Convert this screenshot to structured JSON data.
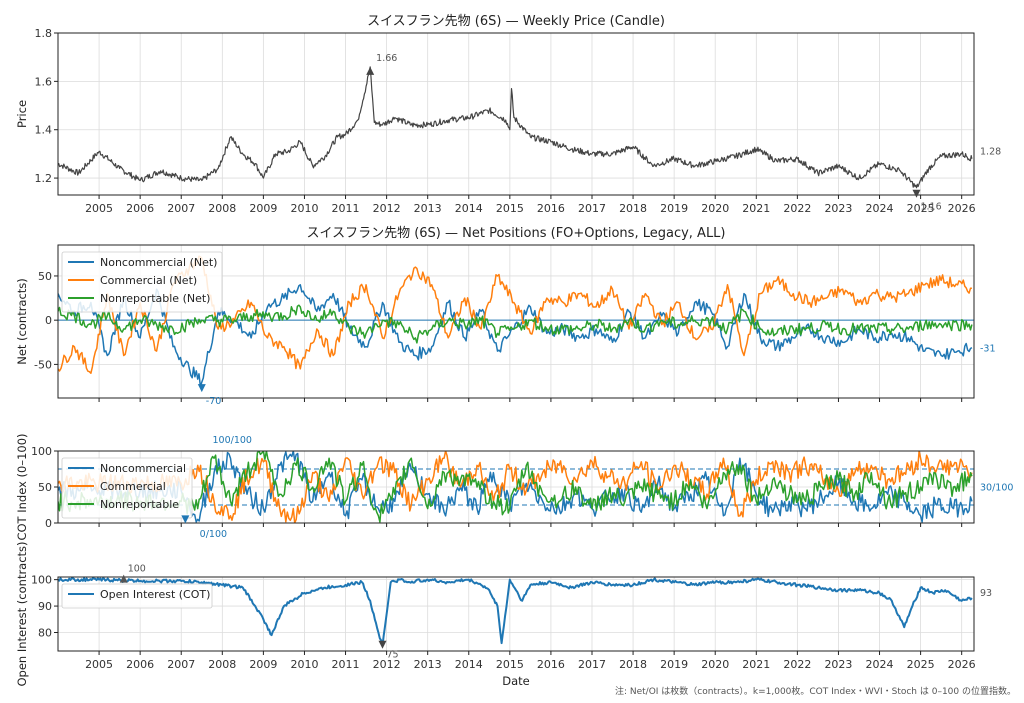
{
  "colors": {
    "price": "#444444",
    "noncommercial": "#1f77b4",
    "commercial": "#ff7f0e",
    "nonreportable": "#2ca02c",
    "oi": "#1f77b4"
  },
  "xaxis": {
    "xlabel": "Date",
    "range": [
      2004.0,
      2026.3
    ],
    "ticks": [
      "2005",
      "2006",
      "2007",
      "2008",
      "2009",
      "2010",
      "2011",
      "2012",
      "2013",
      "2014",
      "2015",
      "2016",
      "2017",
      "2018",
      "2019",
      "2020",
      "2021",
      "2022",
      "2023",
      "2024",
      "2025",
      "2026"
    ]
  },
  "footnote": "注: Net/OI は枚数（contracts）。k=1,000枚。COT Index・WVI・Stoch は 0–100 の位置指数。",
  "chart_data": [
    {
      "type": "line",
      "title": "スイスフラン先物 (6S) — Weekly Price (Candle)",
      "ylabel": "Price",
      "ylim": [
        1.13,
        1.8
      ],
      "yticks": [
        "1.2",
        "1.4",
        "1.6",
        "1.8"
      ],
      "annotations": {
        "max_label": "1.66",
        "min_label": "1.16",
        "last_label": "1.28"
      },
      "x": [
        2004.0,
        2004.5,
        2005.0,
        2005.5,
        2006.0,
        2006.5,
        2007.0,
        2007.5,
        2007.9,
        2008.2,
        2008.5,
        2008.8,
        2009.0,
        2009.3,
        2009.6,
        2009.9,
        2010.2,
        2010.5,
        2010.8,
        2011.0,
        2011.3,
        2011.5,
        2011.6,
        2011.7,
        2011.9,
        2012.2,
        2012.6,
        2013.0,
        2013.5,
        2014.0,
        2014.5,
        2014.9,
        2015.0,
        2015.04,
        2015.1,
        2015.5,
        2016.0,
        2016.5,
        2017.0,
        2017.5,
        2018.0,
        2018.5,
        2019.0,
        2019.5,
        2020.0,
        2020.5,
        2021.0,
        2021.5,
        2022.0,
        2022.5,
        2023.0,
        2023.5,
        2024.0,
        2024.5,
        2024.9,
        2025.2,
        2025.5,
        2026.0,
        2026.25
      ],
      "series": [
        {
          "values": [
            1.26,
            1.22,
            1.31,
            1.24,
            1.19,
            1.23,
            1.2,
            1.19,
            1.24,
            1.37,
            1.3,
            1.26,
            1.2,
            1.3,
            1.31,
            1.35,
            1.25,
            1.29,
            1.37,
            1.38,
            1.44,
            1.58,
            1.66,
            1.43,
            1.42,
            1.45,
            1.42,
            1.42,
            1.44,
            1.45,
            1.48,
            1.44,
            1.4,
            1.57,
            1.45,
            1.37,
            1.35,
            1.32,
            1.3,
            1.3,
            1.33,
            1.25,
            1.28,
            1.25,
            1.27,
            1.29,
            1.32,
            1.27,
            1.28,
            1.22,
            1.25,
            1.2,
            1.26,
            1.23,
            1.16,
            1.24,
            1.29,
            1.3,
            1.28
          ]
        }
      ]
    },
    {
      "type": "line",
      "title": "スイスフラン先物 (6S) — Net Positions (FO+Options, Legacy, ALL)",
      "ylabel": "Net (contracts)",
      "ylim": [
        -88,
        85
      ],
      "yticks": [
        "50",
        "0",
        "-50"
      ],
      "annotations": {
        "min_label": "-70",
        "last_label": "-31"
      },
      "x": [
        2004.0,
        2004.4,
        2004.8,
        2005.2,
        2005.6,
        2006.0,
        2006.4,
        2006.8,
        2007.2,
        2007.5,
        2007.9,
        2008.3,
        2008.7,
        2009.1,
        2009.5,
        2009.9,
        2010.3,
        2010.7,
        2011.1,
        2011.5,
        2011.9,
        2012.3,
        2012.7,
        2013.1,
        2013.5,
        2013.9,
        2014.3,
        2014.7,
        2015.1,
        2015.5,
        2015.9,
        2016.3,
        2016.7,
        2017.1,
        2017.5,
        2017.9,
        2018.3,
        2018.7,
        2019.1,
        2019.5,
        2019.9,
        2020.3,
        2020.7,
        2021.1,
        2021.5,
        2021.9,
        2022.3,
        2022.7,
        2023.1,
        2023.5,
        2023.9,
        2024.3,
        2024.7,
        2025.1,
        2025.5,
        2025.9,
        2026.25
      ],
      "series": [
        {
          "name": "Noncommercial (Net)",
          "values": [
            30,
            10,
            20,
            -40,
            25,
            -20,
            35,
            -30,
            -55,
            -70,
            10,
            0,
            -20,
            15,
            25,
            40,
            10,
            30,
            -10,
            -30,
            20,
            -25,
            -40,
            -30,
            20,
            -20,
            10,
            -35,
            -10,
            15,
            -15,
            -10,
            -20,
            -10,
            -25,
            10,
            -20,
            5,
            -15,
            20,
            10,
            -30,
            30,
            -20,
            -30,
            -20,
            -10,
            -20,
            -25,
            -10,
            -20,
            -15,
            -20,
            -35,
            -40,
            -35,
            -31
          ]
        },
        {
          "name": "Commercial (Net)",
          "values": [
            -55,
            -30,
            -60,
            30,
            -40,
            20,
            -35,
            40,
            60,
            70,
            -10,
            0,
            20,
            -20,
            -30,
            -55,
            -10,
            -40,
            20,
            40,
            -20,
            30,
            60,
            40,
            -20,
            25,
            -10,
            50,
            20,
            -15,
            25,
            20,
            30,
            15,
            35,
            -10,
            30,
            -5,
            20,
            -20,
            -10,
            40,
            -40,
            30,
            45,
            30,
            20,
            25,
            35,
            20,
            30,
            25,
            30,
            40,
            45,
            40,
            36
          ]
        },
        {
          "name": "Nonreportable (Net)",
          "values": [
            10,
            5,
            -5,
            5,
            -10,
            0,
            -5,
            -10,
            -5,
            0,
            0,
            0,
            5,
            5,
            5,
            15,
            0,
            10,
            -10,
            -15,
            0,
            -5,
            -20,
            -10,
            0,
            -5,
            0,
            -15,
            -10,
            0,
            -10,
            -10,
            -10,
            -5,
            -10,
            0,
            -10,
            0,
            -5,
            0,
            0,
            -10,
            10,
            -10,
            -15,
            -10,
            -10,
            -5,
            -10,
            -10,
            -10,
            -10,
            -10,
            -5,
            -5,
            -5,
            -5
          ]
        }
      ]
    },
    {
      "type": "line",
      "ylabel": "COT Index (0–100)",
      "ylim": [
        0,
        100
      ],
      "yticks": [
        "100",
        "50",
        "0"
      ],
      "hlines": [
        75,
        25
      ],
      "annotations": {
        "max_label": "100/100",
        "min_label": "0/100",
        "last_label": "30/100"
      },
      "x": [
        2004.0,
        2004.5,
        2005.0,
        2005.5,
        2006.0,
        2006.5,
        2007.0,
        2007.4,
        2007.8,
        2008.2,
        2008.6,
        2009.0,
        2009.4,
        2009.8,
        2010.2,
        2010.6,
        2011.0,
        2011.4,
        2011.8,
        2012.2,
        2012.6,
        2013.0,
        2013.4,
        2013.8,
        2014.2,
        2014.6,
        2015.0,
        2015.4,
        2015.8,
        2016.2,
        2016.6,
        2017.0,
        2017.4,
        2017.8,
        2018.2,
        2018.6,
        2019.0,
        2019.4,
        2019.8,
        2020.2,
        2020.6,
        2021.0,
        2021.4,
        2021.8,
        2022.2,
        2022.6,
        2023.0,
        2023.4,
        2023.8,
        2024.2,
        2024.6,
        2025.0,
        2025.4,
        2025.8,
        2026.25
      ],
      "series": [
        {
          "name": "Noncommercial",
          "values": [
            45,
            45,
            45,
            45,
            45,
            45,
            45,
            5,
            70,
            90,
            40,
            20,
            80,
            95,
            30,
            70,
            10,
            60,
            20,
            30,
            75,
            40,
            15,
            50,
            20,
            70,
            25,
            55,
            30,
            20,
            40,
            20,
            35,
            45,
            15,
            55,
            20,
            40,
            60,
            10,
            90,
            40,
            15,
            30,
            20,
            35,
            55,
            30,
            20,
            40,
            30,
            10,
            25,
            20,
            30
          ]
        },
        {
          "name": "Commercial",
          "values": [
            55,
            55,
            55,
            55,
            55,
            55,
            55,
            80,
            30,
            10,
            65,
            85,
            20,
            5,
            70,
            30,
            90,
            40,
            85,
            70,
            25,
            60,
            90,
            50,
            80,
            30,
            75,
            45,
            70,
            80,
            60,
            85,
            65,
            55,
            85,
            45,
            80,
            60,
            40,
            90,
            10,
            60,
            85,
            70,
            80,
            65,
            45,
            70,
            80,
            60,
            70,
            90,
            75,
            80,
            70
          ]
        },
        {
          "name": "Nonreportable",
          "values": [
            30,
            30,
            30,
            30,
            30,
            30,
            30,
            20,
            90,
            30,
            70,
            100,
            40,
            80,
            50,
            90,
            30,
            80,
            10,
            40,
            90,
            20,
            70,
            60,
            50,
            30,
            20,
            80,
            40,
            30,
            50,
            20,
            40,
            30,
            50,
            40,
            30,
            60,
            20,
            70,
            80,
            30,
            60,
            40,
            30,
            50,
            60,
            40,
            70,
            30,
            40,
            50,
            60,
            50,
            65
          ]
        }
      ]
    },
    {
      "type": "line",
      "ylabel": "Open Interest (contracts)",
      "ylim": [
        73,
        101
      ],
      "yticks": [
        "100",
        "90",
        "80"
      ],
      "annotations": {
        "max_label": "100",
        "min_label": "75",
        "last_label": "93"
      },
      "x": [
        2004.0,
        2005.0,
        2006.0,
        2007.0,
        2007.5,
        2008.0,
        2008.5,
        2008.8,
        2009.0,
        2009.2,
        2009.5,
        2010.0,
        2010.5,
        2011.0,
        2011.4,
        2011.6,
        2011.8,
        2011.9,
        2012.1,
        2012.4,
        2012.5,
        2013.0,
        2013.5,
        2014.0,
        2014.3,
        2014.5,
        2014.7,
        2014.8,
        2015.0,
        2015.3,
        2015.5,
        2016.0,
        2016.5,
        2017.0,
        2017.5,
        2018.0,
        2018.5,
        2019.0,
        2019.5,
        2020.0,
        2020.5,
        2021.0,
        2021.5,
        2022.0,
        2022.5,
        2023.0,
        2023.5,
        2024.0,
        2024.3,
        2024.6,
        2024.8,
        2025.0,
        2025.3,
        2025.6,
        2026.0,
        2026.25
      ],
      "series": [
        {
          "name": "Open Interest (COT)",
          "values": [
            100,
            100,
            99.5,
            99.5,
            99,
            98,
            97,
            90,
            85,
            79,
            90,
            95,
            97,
            98,
            99,
            92,
            80,
            75,
            99,
            100,
            99,
            100,
            99,
            100,
            98,
            96,
            90,
            76,
            100,
            92,
            98,
            99,
            97,
            99,
            98,
            98,
            100,
            99,
            98,
            99,
            99,
            100,
            99,
            98,
            97,
            96,
            96,
            95,
            92,
            82,
            90,
            97,
            95,
            96,
            92,
            93
          ]
        }
      ]
    }
  ]
}
